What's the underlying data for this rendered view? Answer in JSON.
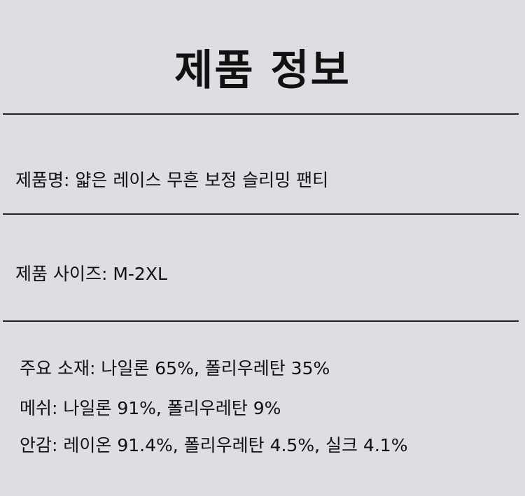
{
  "title": "제품 정보",
  "product_name": "제품명: 얇은 레이스 무흔 보정 슬리밍 팬티",
  "product_size": "제품 사이즈: M-2XL",
  "materials": {
    "main": "주요 소재: 나일론 65%, 폴리우레탄 35%",
    "mesh": "메쉬: 나일론 91%, 폴리우레탄 9%",
    "lining": "안감: 레이온 91.4%, 폴리우레탄 4.5%, 실크 4.1%"
  }
}
